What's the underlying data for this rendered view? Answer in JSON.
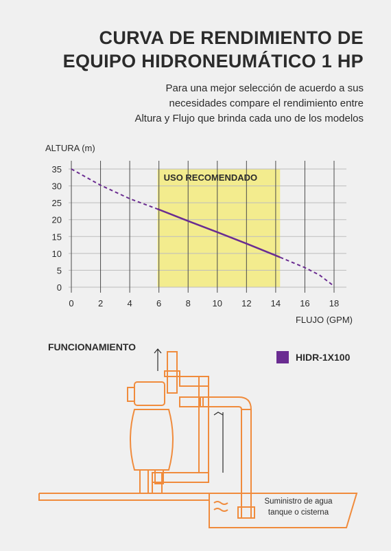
{
  "title": {
    "line1": "CURVA DE RENDIMIENTO DE",
    "line2": "EQUIPO HIDRONEUMÁTICO 1 HP"
  },
  "subtitle": {
    "line1": "Para una mejor selección de acuerdo a sus",
    "line2": "necesidades compare el rendimiento entre",
    "line3": "Altura y Flujo que brinda cada uno de los modelos"
  },
  "chart_data": {
    "type": "line",
    "ylabel": "ALTURA (m)",
    "xlabel": "FLUJO (GPM)",
    "x_ticks": [
      0,
      2,
      4,
      6,
      8,
      10,
      12,
      14,
      16,
      18
    ],
    "y_ticks": [
      0,
      5,
      10,
      15,
      20,
      25,
      30,
      35
    ],
    "xlim": [
      0,
      18
    ],
    "ylim": [
      0,
      35
    ],
    "grid": "vertical",
    "recommended_zone": {
      "label": "USO RECOMENDADO",
      "x_range": [
        5.9,
        14.3
      ],
      "color": "#f3ec8e"
    },
    "series": [
      {
        "name": "HIDR-1X100",
        "color": "#6a2c91",
        "x": [
          0,
          2,
          4,
          6,
          8,
          10,
          12,
          14,
          16,
          17,
          18
        ],
        "y": [
          35,
          30.2,
          26.2,
          23.0,
          19.6,
          16.3,
          12.9,
          9.4,
          5.8,
          3.6,
          0.3
        ],
        "solid_range": [
          5.9,
          14.3
        ]
      }
    ]
  },
  "legend": {
    "label": "HIDR-1X100",
    "color": "#6a2c91"
  },
  "diagram": {
    "heading": "FUNCIONAMIENTO",
    "supply_line1": "Suministro de agua",
    "supply_line2": "tanque o cisterna",
    "pipe_color": "#f08b3c"
  }
}
